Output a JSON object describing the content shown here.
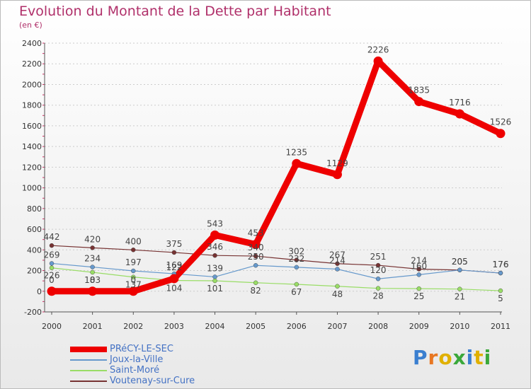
{
  "header": {
    "title": "Evolution du Montant de la Dette par Habitant",
    "subtitle": "(en €)"
  },
  "logo": {
    "text": "Proxiti"
  },
  "chart_data": {
    "type": "line",
    "title": "Evolution du Montant de la Dette par Habitant",
    "subtitle": "(en €)",
    "xlabel": "",
    "ylabel": "",
    "x": [
      "2000",
      "2001",
      "2002",
      "2003",
      "2004",
      "2005",
      "2006",
      "2007",
      "2008",
      "2009",
      "2010",
      "2011"
    ],
    "ylim": [
      -200,
      2400
    ],
    "yticks": [
      -200,
      0,
      200,
      400,
      600,
      800,
      1000,
      1200,
      1400,
      1600,
      1800,
      2000,
      2200,
      2400
    ],
    "grid": "horizontal-dashed",
    "legend_position": "bottom-left",
    "series": [
      {
        "name": "PRéCY-LE-SEC",
        "color": "#ee0000",
        "values": [
          0,
          0,
          0,
          122,
          543,
          453,
          1235,
          1129,
          2226,
          1835,
          1716,
          1526
        ]
      },
      {
        "name": "Joux-la-Ville",
        "color": "#6699cc",
        "values": [
          269,
          234,
          197,
          169,
          139,
          250,
          232,
          214,
          120,
          160,
          205,
          176
        ]
      },
      {
        "name": "Saint-Moré",
        "color": "#99dd66",
        "values": [
          226,
          183,
          137,
          104,
          101,
          82,
          67,
          48,
          28,
          25,
          21,
          5
        ]
      },
      {
        "name": "Voutenay-sur-Cure",
        "color": "#773333",
        "values": [
          442,
          420,
          400,
          375,
          346,
          340,
          302,
          267,
          251,
          214,
          205,
          176
        ]
      }
    ]
  }
}
